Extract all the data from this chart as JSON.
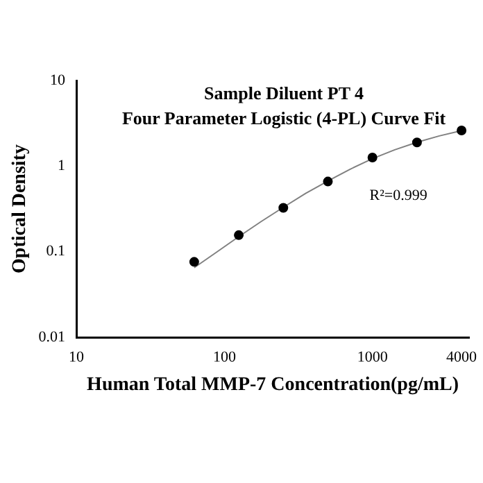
{
  "chart_data": {
    "type": "scatter",
    "title": "Sample Diluent PT 4",
    "subtitle": "Four Parameter Logistic (4-PL) Curve Fit",
    "xlabel": "Human Total MMP-7 Concentration(pg/mL)",
    "ylabel": "Optical Density",
    "log": "xy",
    "grid": false,
    "legend": false,
    "xlim": [
      10,
      4500
    ],
    "xticks": [
      10,
      100,
      1000,
      4000
    ],
    "ylim": [
      0.01,
      10
    ],
    "yticks": [
      0.01,
      0.1,
      1,
      10
    ],
    "annotations": [
      "R²=0.999"
    ],
    "series": [
      {
        "color": "#000000",
        "marker": "circle",
        "x": [
          62.5,
          125,
          250,
          500,
          1000,
          2000,
          4000
        ],
        "values": [
          0.076,
          0.156,
          0.325,
          0.66,
          1.26,
          1.89,
          2.61
        ]
      },
      {
        "type": "line",
        "color": "#808080",
        "marker": "none",
        "x": [
          62.5,
          88,
          125,
          177,
          250,
          354,
          500,
          707,
          1000,
          1414,
          2000,
          2828,
          4000
        ],
        "values": [
          0.065,
          0.098,
          0.15,
          0.225,
          0.33,
          0.48,
          0.67,
          0.92,
          1.22,
          1.55,
          1.9,
          2.25,
          2.6
        ]
      }
    ]
  }
}
